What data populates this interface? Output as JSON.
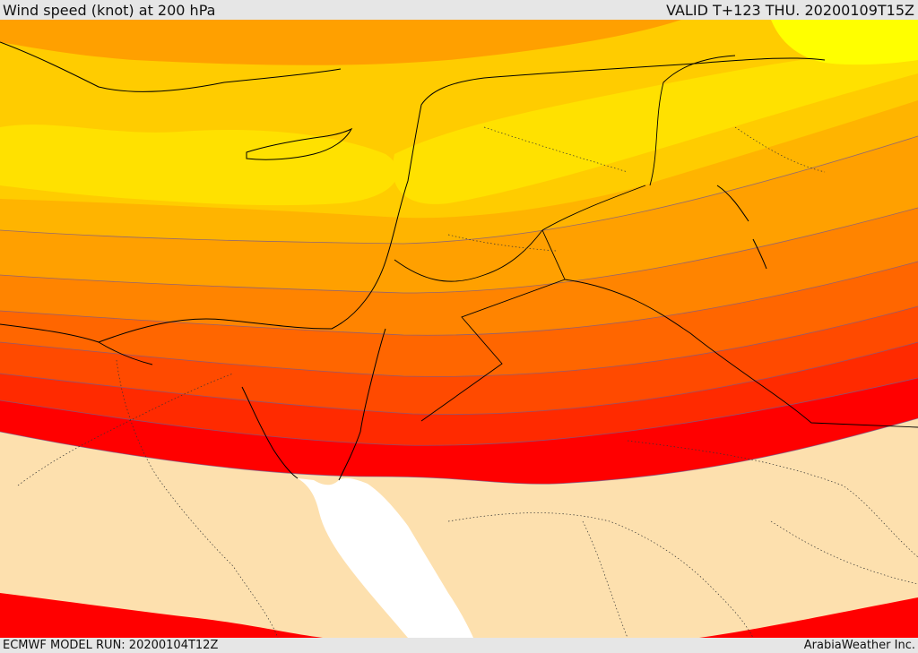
{
  "header": {
    "title": "Wind speed (knot) at 200 hPa",
    "valid": "VALID T+123 THU. 20200109T15Z"
  },
  "footer": {
    "model_run": "ECMWF MODEL RUN: 20200104T12Z",
    "brand": "ArabiaWeather Inc."
  },
  "colors": {
    "calm": "#fde0ae",
    "band_1": "#ff0000",
    "band_2": "#ff2a00",
    "band_3": "#ff4a00",
    "band_4": "#ff6600",
    "band_5": "#ff8400",
    "band_6": "#ffa000",
    "band_7": "#ffb400",
    "band_8": "#ffcc00",
    "band_9": "#ffe100",
    "band_10": "#ffff00",
    "sea": "#ffffff",
    "border": "#000000"
  }
}
